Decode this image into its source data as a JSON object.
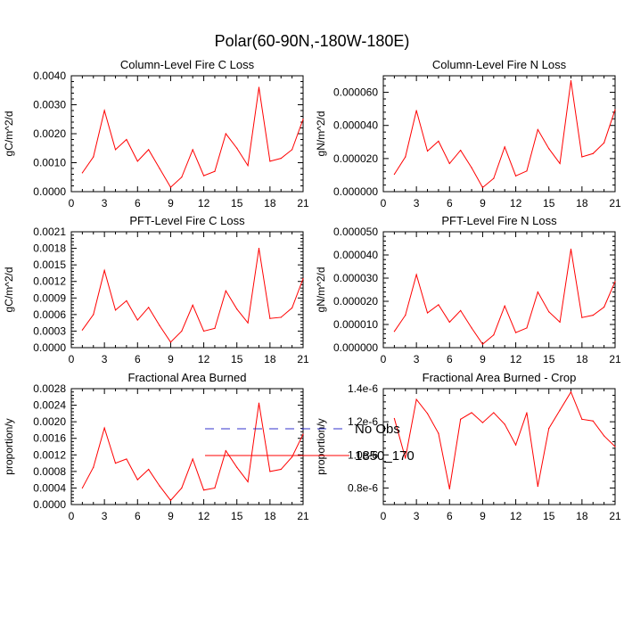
{
  "figure": {
    "title": "Polar(60-90N,-180W-180E)",
    "line_color": "#ff0000",
    "obs_color": "#3333cc"
  },
  "legend": {
    "items": [
      {
        "label": "No Obs",
        "style": "dashed",
        "color": "#3333cc"
      },
      {
        "label": "1850_170",
        "style": "solid",
        "color": "#ff0000"
      }
    ]
  },
  "chart_data": [
    {
      "type": "line",
      "title": "Column-Level Fire C Loss",
      "ylabel": "gC/m^2/d",
      "xlim": [
        0,
        21
      ],
      "xticks": [
        0,
        3,
        6,
        9,
        12,
        15,
        18,
        21
      ],
      "ylim": [
        0,
        0.004
      ],
      "yticks": [
        "0.0000",
        "0.0010",
        "0.0020",
        "0.0030",
        "0.0040"
      ],
      "ytick_values": [
        0,
        0.001,
        0.002,
        0.003,
        0.004
      ],
      "series": [
        {
          "name": "1850_170",
          "x": [
            1,
            2,
            3,
            4,
            5,
            6,
            7,
            8,
            9,
            10,
            11,
            12,
            13,
            14,
            15,
            16,
            17,
            18,
            19,
            20,
            21
          ],
          "values": [
            0.00065,
            0.0012,
            0.0028,
            0.00145,
            0.0018,
            0.00105,
            0.00145,
            0.0008,
            0.00015,
            0.0005,
            0.00145,
            0.00055,
            0.0007,
            0.002,
            0.0015,
            0.0009,
            0.0036,
            0.00105,
            0.00115,
            0.00145,
            0.0025
          ]
        }
      ]
    },
    {
      "type": "line",
      "title": "Column-Level Fire N Loss",
      "ylabel": "gN/m^2/d",
      "xlim": [
        0,
        21
      ],
      "xticks": [
        0,
        3,
        6,
        9,
        12,
        15,
        18,
        21
      ],
      "ylim": [
        0,
        7e-05
      ],
      "yticks": [
        "0.000000",
        "0.000020",
        "0.000040",
        "0.000060"
      ],
      "ytick_values": [
        0,
        2e-05,
        4e-05,
        6e-05
      ],
      "series": [
        {
          "name": "1850_170",
          "x": [
            1,
            2,
            3,
            4,
            5,
            6,
            7,
            8,
            9,
            10,
            11,
            12,
            13,
            14,
            15,
            16,
            17,
            18,
            19,
            20,
            21
          ],
          "values": [
            1.05e-05,
            2.1e-05,
            4.9e-05,
            2.45e-05,
            3.05e-05,
            1.7e-05,
            2.5e-05,
            1.45e-05,
            2.5e-06,
            8e-06,
            2.7e-05,
            9.5e-06,
            1.25e-05,
            3.75e-05,
            2.6e-05,
            1.7e-05,
            6.7e-05,
            2.1e-05,
            2.3e-05,
            2.95e-05,
            4.95e-05
          ]
        }
      ]
    },
    {
      "type": "line",
      "title": "PFT-Level Fire C Loss",
      "ylabel": "gC/m^2/d",
      "xlim": [
        0,
        21
      ],
      "xticks": [
        0,
        3,
        6,
        9,
        12,
        15,
        18,
        21
      ],
      "ylim": [
        0,
        0.0021
      ],
      "yticks": [
        "0.0000",
        "0.0003",
        "0.0006",
        "0.0009",
        "0.0012",
        "0.0015",
        "0.0018",
        "0.0021"
      ],
      "ytick_values": [
        0,
        0.0003,
        0.0006,
        0.0009,
        0.0012,
        0.0015,
        0.0018,
        0.0021
      ],
      "series": [
        {
          "name": "1850_170",
          "x": [
            1,
            2,
            3,
            4,
            5,
            6,
            7,
            8,
            9,
            10,
            11,
            12,
            13,
            14,
            15,
            16,
            17,
            18,
            19,
            20,
            21
          ],
          "values": [
            0.00032,
            0.0006,
            0.0014,
            0.00068,
            0.00085,
            0.0005,
            0.00073,
            0.0004,
            0.0001,
            0.0003,
            0.00077,
            0.0003,
            0.00035,
            0.00103,
            0.0007,
            0.00045,
            0.0018,
            0.00053,
            0.00055,
            0.00072,
            0.00125
          ]
        }
      ]
    },
    {
      "type": "line",
      "title": "PFT-Level Fire N Loss",
      "ylabel": "gN/m^2/d",
      "xlim": [
        0,
        21
      ],
      "xticks": [
        0,
        3,
        6,
        9,
        12,
        15,
        18,
        21
      ],
      "ylim": [
        0,
        5e-05
      ],
      "yticks": [
        "0.000000",
        "0.000010",
        "0.000020",
        "0.000030",
        "0.000040",
        "0.000050"
      ],
      "ytick_values": [
        0,
        1e-05,
        2e-05,
        3e-05,
        4e-05,
        5e-05
      ],
      "series": [
        {
          "name": "1850_170",
          "x": [
            1,
            2,
            3,
            4,
            5,
            6,
            7,
            8,
            9,
            10,
            11,
            12,
            13,
            14,
            15,
            16,
            17,
            18,
            19,
            20,
            21
          ],
          "values": [
            7e-06,
            1.4e-05,
            3.15e-05,
            1.5e-05,
            1.85e-05,
            1.1e-05,
            1.6e-05,
            8.5e-06,
            1.5e-06,
            5.5e-06,
            1.8e-05,
            6.5e-06,
            8.5e-06,
            2.4e-05,
            1.55e-05,
            1.1e-05,
            4.25e-05,
            1.3e-05,
            1.4e-05,
            1.75e-05,
            2.85e-05
          ]
        }
      ]
    },
    {
      "type": "line",
      "title": "Fractional Area Burned",
      "ylabel": "proportion/y",
      "xlim": [
        0,
        21
      ],
      "xticks": [
        0,
        3,
        6,
        9,
        12,
        15,
        18,
        21
      ],
      "ylim": [
        0,
        0.0028
      ],
      "yticks": [
        "0.0000",
        "0.0004",
        "0.0008",
        "0.0012",
        "0.0016",
        "0.0020",
        "0.0024",
        "0.0028"
      ],
      "ytick_values": [
        0,
        0.0004,
        0.0008,
        0.0012,
        0.0016,
        0.002,
        0.0024,
        0.0028
      ],
      "series": [
        {
          "name": "1850_170",
          "x": [
            1,
            2,
            3,
            4,
            5,
            6,
            7,
            8,
            9,
            10,
            11,
            12,
            13,
            14,
            15,
            16,
            17,
            18,
            19,
            20,
            21
          ],
          "values": [
            0.0004,
            0.0009,
            0.00185,
            0.001,
            0.0011,
            0.0006,
            0.00085,
            0.00045,
            0.0001,
            0.0004,
            0.0011,
            0.00035,
            0.0004,
            0.0013,
            0.0009,
            0.00055,
            0.00245,
            0.0008,
            0.00085,
            0.00115,
            0.0017
          ]
        }
      ]
    },
    {
      "type": "line",
      "title": "Fractional Area Burned - Crop",
      "ylabel": "proportion/y",
      "xlim": [
        0,
        21
      ],
      "xticks": [
        0,
        3,
        6,
        9,
        12,
        15,
        18,
        21
      ],
      "ylim": [
        7e-07,
        1.4e-06
      ],
      "yticks": [
        "0.8e-6",
        "1.0e-6",
        "1.2e-6",
        "1.4e-6"
      ],
      "ytick_values": [
        8e-07,
        1e-06,
        1.2e-06,
        1.4e-06
      ],
      "series": [
        {
          "name": "1850_170",
          "x": [
            1,
            2,
            3,
            4,
            5,
            6,
            7,
            8,
            9,
            10,
            11,
            12,
            13,
            14,
            15,
            16,
            17,
            18,
            19,
            20,
            21
          ],
          "values": [
            1.22e-06,
            9.8e-07,
            1.335e-06,
            1.25e-06,
            1.13e-06,
            7.95e-07,
            1.215e-06,
            1.255e-06,
            1.195e-06,
            1.255e-06,
            1.185e-06,
            1.06e-06,
            1.255e-06,
            8.1e-07,
            1.16e-06,
            1.27e-06,
            1.38e-06,
            1.215e-06,
            1.205e-06,
            1.115e-06,
            1.05e-06
          ]
        }
      ]
    }
  ]
}
